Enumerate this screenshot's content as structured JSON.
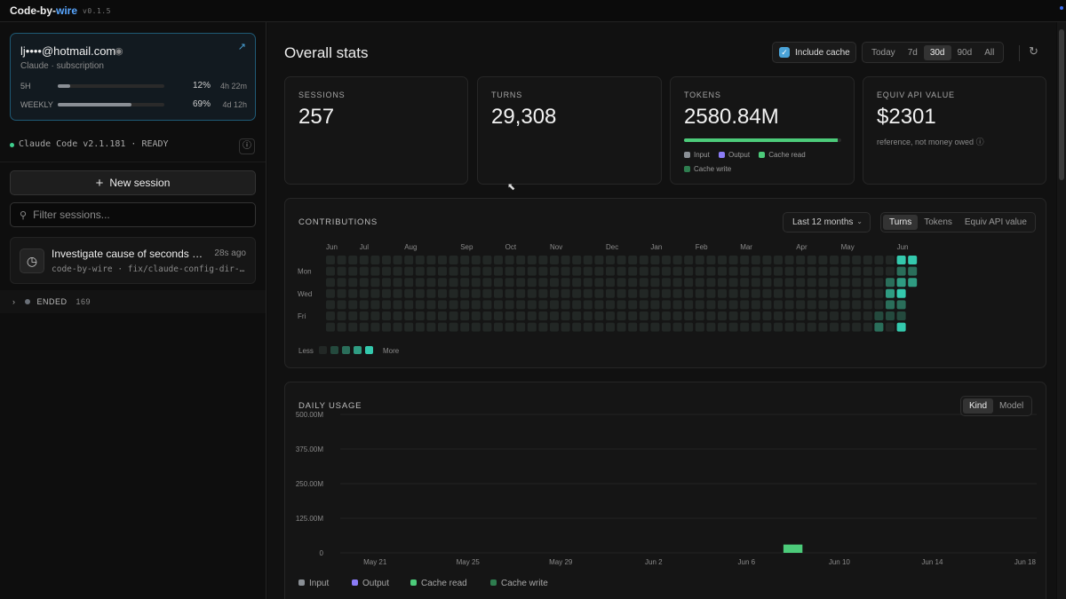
{
  "app": {
    "brand_main": "Code-by-",
    "brand_accent": "wire",
    "version": "v0.1.5"
  },
  "account": {
    "email": "lj••••@hotmail.com",
    "subtitle": "Claude · subscription",
    "usage": [
      {
        "label": "5H",
        "percent_value": 12,
        "percent": "12%",
        "time": "4h 22m"
      },
      {
        "label": "WEEKLY",
        "percent_value": 69,
        "percent": "69%",
        "time": "4d 12h"
      }
    ]
  },
  "claude_status": "Claude Code v2.1.181 · READY",
  "sidebar": {
    "new_session": "New session",
    "filter_placeholder": "Filter sessions...",
    "session": {
      "title": "Investigate cause of seconds de…",
      "time": "28s ago",
      "meta": "code-by-wire · fix/claude-config-dir-…"
    },
    "ended": {
      "label": "ENDED",
      "count": "169"
    }
  },
  "main": {
    "title": "Overall stats",
    "include_cache": "Include cache",
    "ranges": [
      "Today",
      "7d",
      "30d",
      "90d",
      "All"
    ],
    "active_range": "30d"
  },
  "stats": [
    {
      "label": "SESSIONS",
      "value": "257"
    },
    {
      "label": "TURNS",
      "value": "29,308"
    },
    {
      "label": "TOKENS",
      "value": "2580.84M",
      "bar_fraction": 0.98,
      "legend": [
        {
          "name": "Input",
          "color": "#8a8f95"
        },
        {
          "name": "Output",
          "color": "#8b7cf6"
        },
        {
          "name": "Cache read",
          "color": "#4ccb7a"
        },
        {
          "name": "Cache write",
          "color": "#2e7d4f"
        }
      ]
    },
    {
      "label": "EQUIV API VALUE",
      "value": "$2301",
      "note": "reference, not money owed"
    }
  ],
  "contributions": {
    "title": "CONTRIBUTIONS",
    "period": "Last 12 months",
    "modes": [
      "Turns",
      "Tokens",
      "Equiv API value"
    ],
    "active_mode": "Turns",
    "months": [
      "Jun",
      "Jul",
      "Aug",
      "Sep",
      "Oct",
      "Nov",
      "Dec",
      "Jan",
      "Feb",
      "Mar",
      "Apr",
      "May",
      "Jun"
    ],
    "days": [
      "Mon",
      "Wed",
      "Fri"
    ],
    "legend_less": "Less",
    "legend_more": "More",
    "levels": [
      "#222725",
      "#24493d",
      "#2a6e5a",
      "#2f9c82",
      "#34c9ad"
    ],
    "active_weeks": [
      [
        0,
        0,
        0,
        0,
        0,
        1,
        2
      ],
      [
        0,
        0,
        2,
        3,
        2,
        1,
        0
      ],
      [
        4,
        2,
        3,
        4,
        2,
        1,
        4
      ],
      [
        4,
        2,
        3,
        3,
        0,
        0,
        0
      ]
    ]
  },
  "daily": {
    "title": "DAILY USAGE",
    "modes": [
      "Kind",
      "Model"
    ],
    "active_mode": "Kind",
    "legend": [
      {
        "name": "Input",
        "color": "#8a8f95"
      },
      {
        "name": "Output",
        "color": "#8b7cf6"
      },
      {
        "name": "Cache read",
        "color": "#4ccb7a"
      },
      {
        "name": "Cache write",
        "color": "#2e7d4f"
      }
    ]
  },
  "chart_data": {
    "type": "bar",
    "stacked": true,
    "ylim": [
      0,
      500
    ],
    "y_ticks": [
      "500.00M",
      "375.00M",
      "250.00M",
      "125.00M",
      "0"
    ],
    "x_tick_labels": [
      "May 21",
      "May 25",
      "May 29",
      "Jun 2",
      "Jun 6",
      "Jun 10",
      "Jun 14",
      "Jun 18"
    ],
    "categories": [
      "May 20",
      "May 21",
      "May 22",
      "May 23",
      "May 24",
      "May 25",
      "May 26",
      "May 27",
      "May 28",
      "May 29",
      "May 30",
      "May 31",
      "Jun 1",
      "Jun 2",
      "Jun 3",
      "Jun 4",
      "Jun 5",
      "Jun 6",
      "Jun 7",
      "Jun 8",
      "Jun 9",
      "Jun 10",
      "Jun 11",
      "Jun 12",
      "Jun 13",
      "Jun 14",
      "Jun 15",
      "Jun 16",
      "Jun 17",
      "Jun 18"
    ],
    "series": [
      {
        "name": "Cache read",
        "color": "#4ccb7a",
        "values": [
          0,
          0,
          0,
          0,
          0,
          0,
          0,
          0,
          0,
          0,
          0,
          0,
          0,
          0,
          0,
          0,
          0,
          0,
          0,
          30,
          0,
          0,
          0,
          0,
          0,
          0,
          0,
          0,
          0,
          0
        ]
      },
      {
        "name": "Cache write",
        "color": "#2e7d4f",
        "values": [
          0,
          0,
          0,
          0,
          0,
          0,
          0,
          0,
          0,
          0,
          0,
          0,
          0,
          0,
          0,
          0,
          0,
          0,
          0,
          0,
          0,
          0,
          0,
          0,
          0,
          0,
          0,
          0,
          0,
          0
        ]
      }
    ]
  }
}
